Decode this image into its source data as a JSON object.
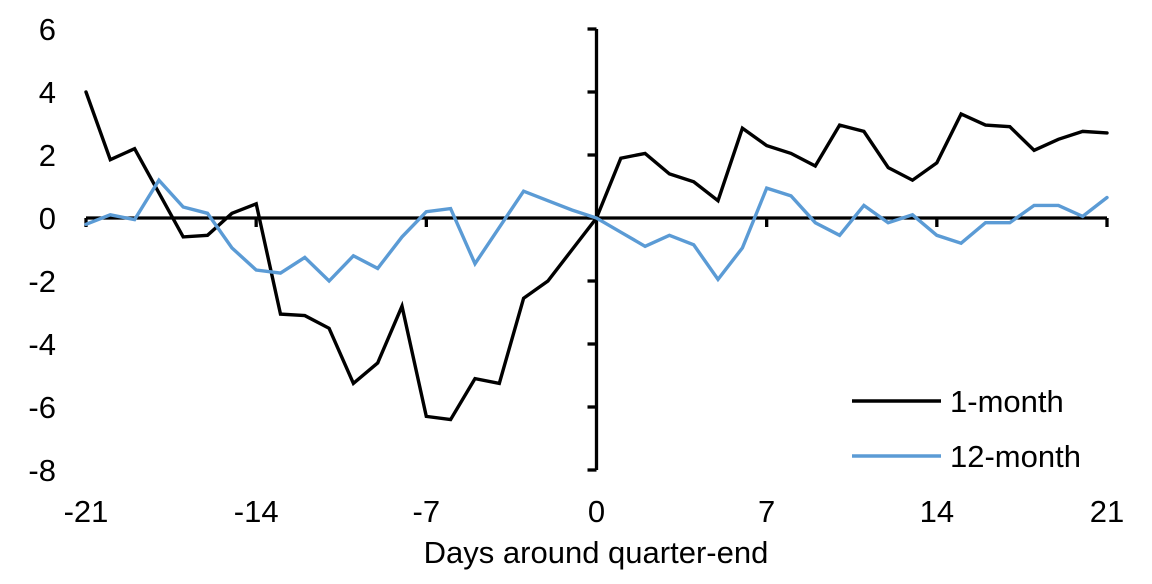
{
  "figure": {
    "xlabel": "Days around quarter-end",
    "background_color": "#ffffff",
    "text_color": "#000000"
  },
  "chart_data": {
    "type": "line",
    "title": "",
    "xlabel": "Days around quarter-end",
    "ylabel": "",
    "xlim": [
      -21,
      21
    ],
    "ylim": [
      -8,
      6
    ],
    "x_ticks": [
      -21,
      -14,
      -7,
      0,
      7,
      14,
      21
    ],
    "y_ticks": [
      6,
      4,
      2,
      0,
      -2,
      -4,
      -6,
      -8
    ],
    "grid": false,
    "legend_position": "inside lower right",
    "x": [
      -21,
      -20,
      -19,
      -18,
      -17,
      -16,
      -15,
      -14,
      -13,
      -12,
      -11,
      -10,
      -9,
      -8,
      -7,
      -6,
      -5,
      -4,
      -3,
      -2,
      -1,
      0,
      1,
      2,
      3,
      4,
      5,
      6,
      7,
      8,
      9,
      10,
      11,
      12,
      13,
      14,
      15,
      16,
      17,
      18,
      19,
      20,
      21
    ],
    "series": [
      {
        "name": "1-month",
        "color": "#000000",
        "values": [
          4.0,
          1.85,
          2.2,
          0.8,
          -0.6,
          -0.55,
          0.15,
          0.45,
          -3.05,
          -3.1,
          -3.5,
          -5.25,
          -4.6,
          -2.8,
          -6.3,
          -6.4,
          -5.1,
          -5.25,
          -2.55,
          -2.0,
          -1.0,
          0.0,
          1.9,
          2.05,
          1.4,
          1.15,
          0.55,
          2.85,
          2.3,
          2.05,
          1.65,
          2.95,
          2.75,
          1.6,
          1.2,
          1.75,
          3.3,
          2.95,
          2.9,
          2.15,
          2.5,
          2.75,
          2.7
        ]
      },
      {
        "name": "12-month",
        "color": "#5B9BD5",
        "values": [
          -0.2,
          0.1,
          -0.05,
          1.2,
          0.35,
          0.15,
          -0.95,
          -1.65,
          -1.75,
          -1.25,
          -2.0,
          -1.2,
          -1.6,
          -0.6,
          0.2,
          0.3,
          -1.45,
          -0.3,
          0.85,
          0.55,
          0.25,
          0.0,
          -0.45,
          -0.9,
          -0.55,
          -0.85,
          -1.95,
          -0.95,
          0.95,
          0.7,
          -0.15,
          -0.55,
          0.4,
          -0.15,
          0.1,
          -0.55,
          -0.8,
          -0.15,
          -0.15,
          0.4,
          0.4,
          0.05,
          0.65
        ]
      }
    ]
  }
}
